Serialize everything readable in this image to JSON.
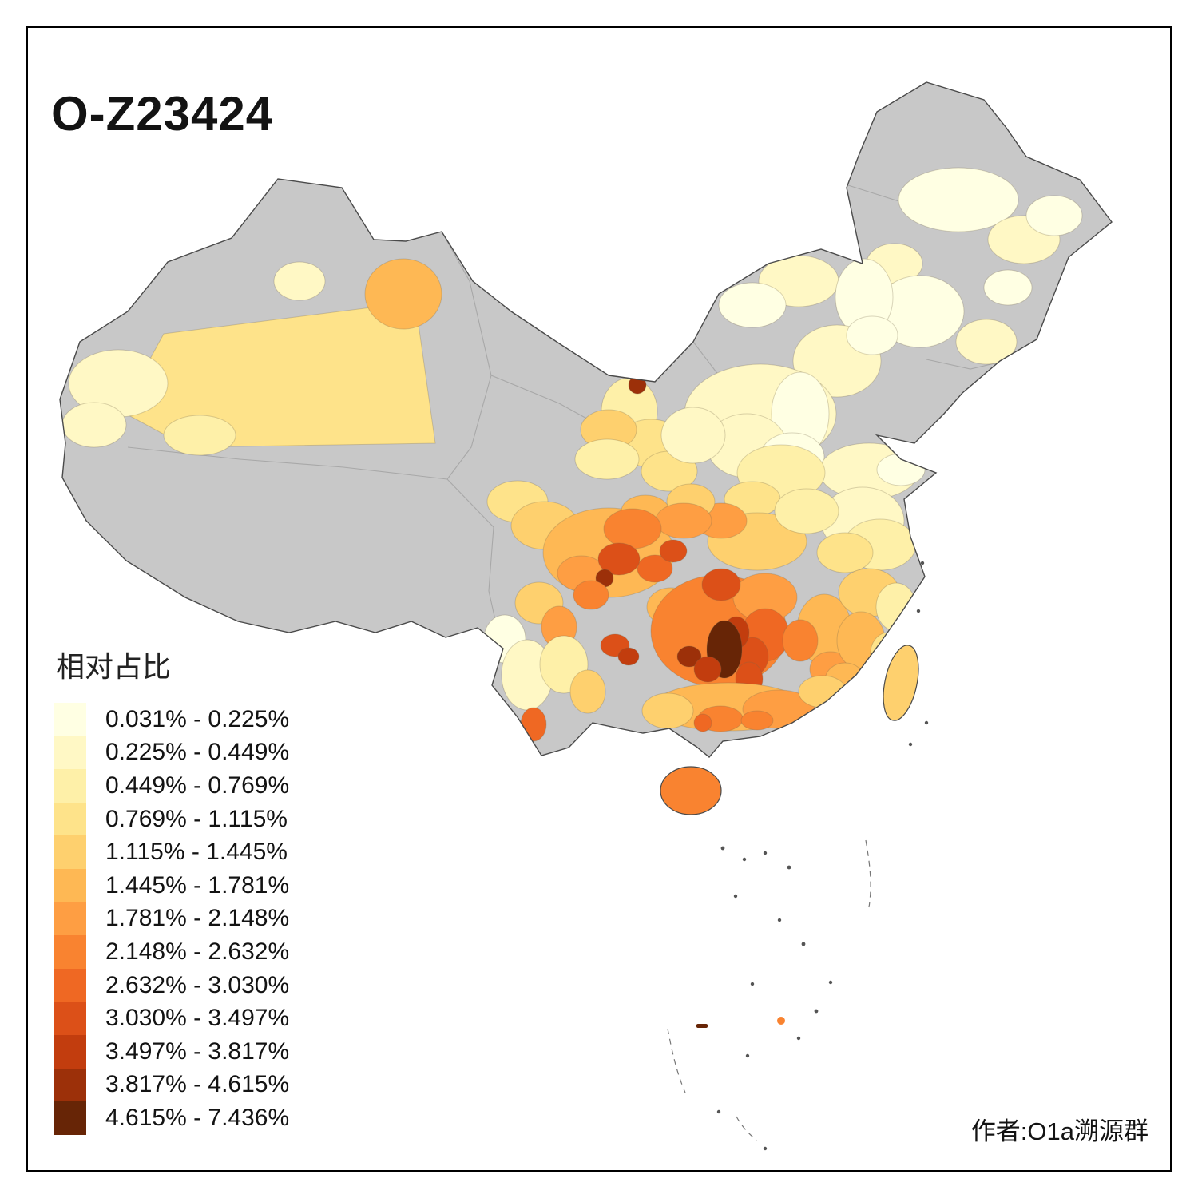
{
  "title": "O-Z23424",
  "legend": {
    "title": "相对占比",
    "items": [
      {
        "label": "0.031% - 0.225%",
        "color": "#FFFFE3"
      },
      {
        "label": "0.225% - 0.449%",
        "color": "#FFF8C5"
      },
      {
        "label": "0.449% - 0.769%",
        "color": "#FEF0A8"
      },
      {
        "label": "0.769% - 1.115%",
        "color": "#FEE38A"
      },
      {
        "label": "1.115% - 1.445%",
        "color": "#FED06E"
      },
      {
        "label": "1.445% - 1.781%",
        "color": "#FEB854"
      },
      {
        "label": "1.781% - 2.148%",
        "color": "#FE9E43"
      },
      {
        "label": "2.148% - 2.632%",
        "color": "#F98330"
      },
      {
        "label": "2.632% - 3.030%",
        "color": "#EF6823"
      },
      {
        "label": "3.030% - 3.497%",
        "color": "#DC5018"
      },
      {
        "label": "3.497% - 3.817%",
        "color": "#C23D0E"
      },
      {
        "label": "3.817% - 4.615%",
        "color": "#9C3009"
      },
      {
        "label": "4.615% - 7.436%",
        "color": "#672506"
      }
    ]
  },
  "credit": "作者:O1a溯源群",
  "map": {
    "type": "choropleth",
    "no_data_color": "#C8C8C8",
    "border_color": "#4A4A4A",
    "inner_border_color": "#A8A8A8",
    "frame_color": "#000000"
  }
}
